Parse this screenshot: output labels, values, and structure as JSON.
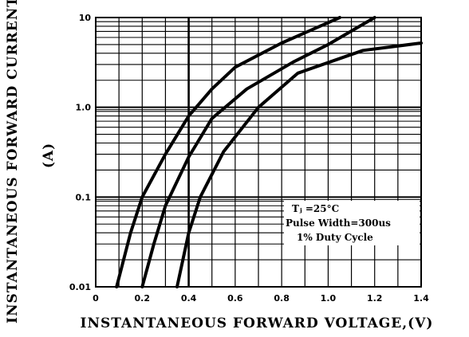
{
  "chart_data": {
    "type": "line",
    "title": "",
    "xlabel": "INSTANTANEOUS  FORWARD  VOLTAGE,(V)",
    "ylabel_line1": "INSTANTANEOUS  FORWARD  CURRENT,",
    "ylabel_line2": "(A)",
    "xlim": [
      0,
      1.4
    ],
    "ylim": [
      0.01,
      10
    ],
    "yscale": "log",
    "grid": true,
    "x_ticks": [
      0,
      0.2,
      0.4,
      0.6,
      0.8,
      1.0,
      1.2,
      1.4
    ],
    "x_tick_labels": [
      "0",
      "0.2",
      "0.4",
      "0.6",
      "0.8",
      "1.0",
      "1.2",
      "1.4"
    ],
    "y_ticks": [
      0.01,
      0.1,
      1,
      10
    ],
    "y_tick_labels": [
      "0.01",
      "0.1",
      "1.0",
      "10"
    ],
    "annotation": {
      "line1": "Tⱼ =25°C",
      "line2": "Pulse Width=300us",
      "line3": "1% Duty Cycle"
    },
    "series": [
      {
        "points": [
          [
            0.09,
            0.01
          ],
          [
            0.15,
            0.04
          ],
          [
            0.2,
            0.1
          ],
          [
            0.3,
            0.3
          ],
          [
            0.4,
            0.8
          ],
          [
            0.5,
            1.6
          ],
          [
            0.6,
            2.8
          ],
          [
            0.8,
            5.2
          ],
          [
            1.05,
            10
          ]
        ]
      },
      {
        "points": [
          [
            0.2,
            0.01
          ],
          [
            0.25,
            0.03
          ],
          [
            0.3,
            0.08
          ],
          [
            0.4,
            0.28
          ],
          [
            0.5,
            0.75
          ],
          [
            0.65,
            1.6
          ],
          [
            0.85,
            3.2
          ],
          [
            1.0,
            5.0
          ],
          [
            1.2,
            10
          ]
        ]
      },
      {
        "points": [
          [
            0.35,
            0.01
          ],
          [
            0.4,
            0.04
          ],
          [
            0.45,
            0.1
          ],
          [
            0.55,
            0.32
          ],
          [
            0.7,
            1.0
          ],
          [
            0.87,
            2.4
          ],
          [
            1.15,
            4.3
          ],
          [
            1.4,
            5.2
          ]
        ]
      }
    ]
  }
}
